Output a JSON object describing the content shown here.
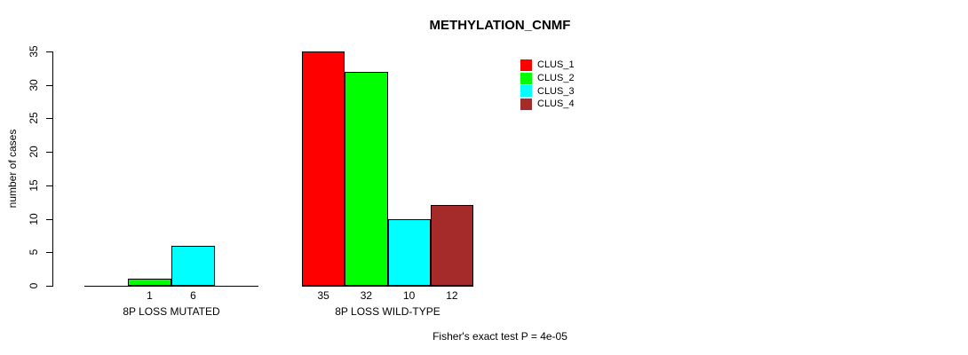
{
  "title": "METHYLATION_CNMF",
  "y_axis": {
    "label": "number of cases"
  },
  "footer": "Fisher's exact test P = 4e-05",
  "chart_data": {
    "type": "bar",
    "title": "METHYLATION_CNMF",
    "xlabel": "",
    "ylabel": "number of cases",
    "ylim": [
      0,
      35
    ],
    "yticks": [
      0,
      5,
      10,
      15,
      20,
      25,
      30,
      35
    ],
    "categories": [
      "8P LOSS MUTATED",
      "8P LOSS WILD-TYPE"
    ],
    "series": [
      {
        "name": "CLUS_1",
        "color": "#FF0000",
        "values": [
          0,
          35
        ]
      },
      {
        "name": "CLUS_2",
        "color": "#00FF00",
        "values": [
          1,
          32
        ]
      },
      {
        "name": "CLUS_3",
        "color": "#00FFFF",
        "values": [
          6,
          10
        ]
      },
      {
        "name": "CLUS_4",
        "color": "#A52A2A",
        "values": [
          0,
          12
        ]
      }
    ],
    "bar_value_labels_shown_for": "nonzero bars only",
    "legend_position": "top-right",
    "grid": false,
    "annotation": "Fisher's exact test P = 4e-05"
  }
}
